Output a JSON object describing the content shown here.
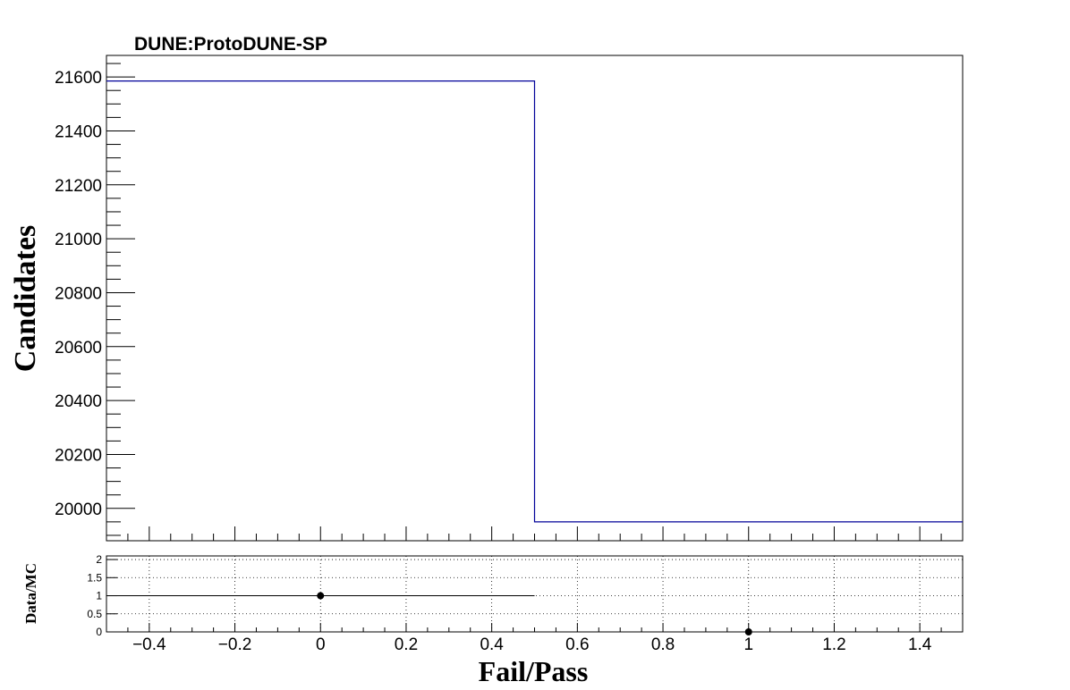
{
  "experiment_label": "DUNE:ProtoDUNE-SP",
  "chart_data": [
    {
      "type": "histogram",
      "panel": "main",
      "ylabel": "Candidates",
      "xlim": [
        -0.5,
        1.5
      ],
      "ylim": [
        19880,
        21680
      ],
      "yticks": [
        20000,
        20200,
        20400,
        20600,
        20800,
        21000,
        21200,
        21400,
        21600
      ],
      "ytick_labels": [
        "20000",
        "20200",
        "20400",
        "20600",
        "20800",
        "21000",
        "21200",
        "21400",
        "21600"
      ],
      "xticks": [
        -0.4,
        -0.2,
        0,
        0.2,
        0.4,
        0.6,
        0.8,
        1,
        1.2,
        1.4
      ],
      "xtick_labels": [
        "−0.4",
        "−0.2",
        "0",
        "0.2",
        "0.4",
        "0.6",
        "0.8",
        "1",
        "1.2",
        "1.4"
      ],
      "bins": [
        {
          "low": -0.5,
          "high": 0.5,
          "value": 21585
        },
        {
          "low": 0.5,
          "high": 1.5,
          "value": 19950
        }
      ],
      "line_color": "#000099"
    },
    {
      "type": "scatter",
      "panel": "ratio",
      "ylabel": "Data/MC",
      "xlabel": "Fail/Pass",
      "xlim": [
        -0.5,
        1.5
      ],
      "ylim": [
        0,
        2.1
      ],
      "yticks": [
        0,
        0.5,
        1,
        1.5,
        2
      ],
      "ytick_labels": [
        "0",
        "0.5",
        "1",
        "1.5",
        "2"
      ],
      "xticks": [
        -0.4,
        -0.2,
        0,
        0.2,
        0.4,
        0.6,
        0.8,
        1,
        1.2,
        1.4
      ],
      "xtick_labels": [
        "−0.4",
        "−0.2",
        "0",
        "0.2",
        "0.4",
        "0.6",
        "0.8",
        "1",
        "1.2",
        "1.4"
      ],
      "grid": true,
      "points": [
        {
          "x": 0,
          "y": 1,
          "xerr_low": -0.5,
          "xerr_high": 0.5
        },
        {
          "x": 1,
          "y": 0
        }
      ]
    }
  ]
}
